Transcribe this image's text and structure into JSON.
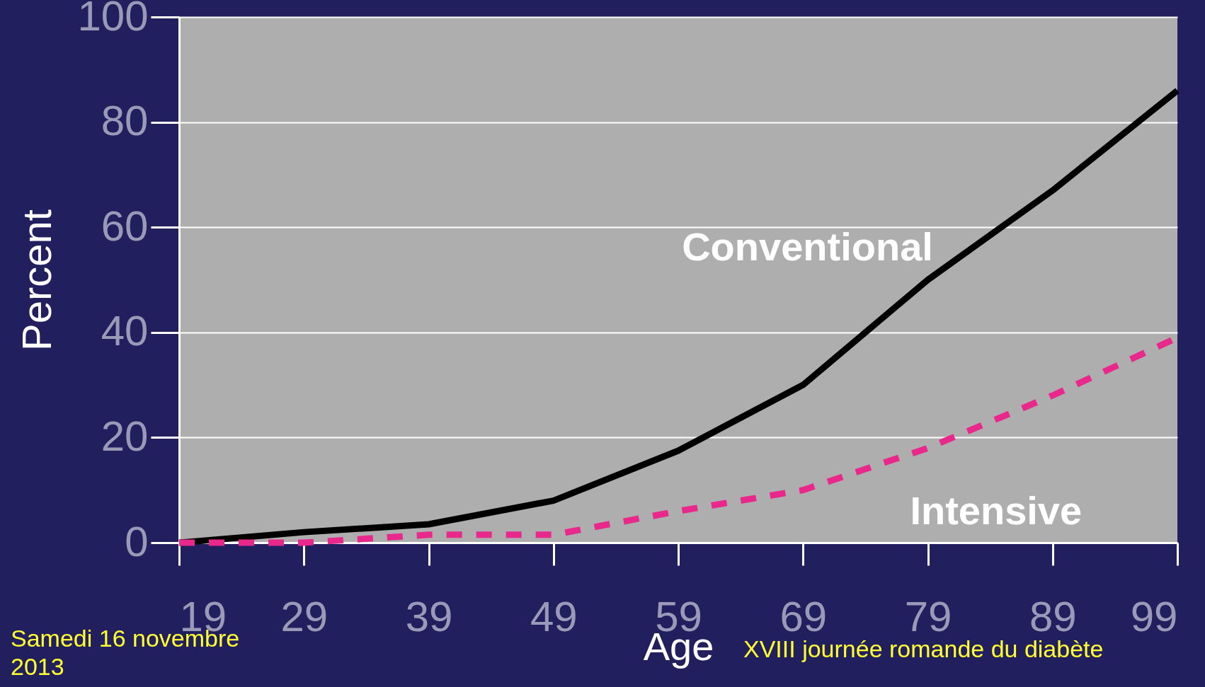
{
  "chart_data": {
    "type": "line",
    "xlabel": "Age",
    "ylabel": "Percent",
    "x": [
      19,
      29,
      39,
      49,
      59,
      69,
      79,
      89,
      99
    ],
    "series": [
      {
        "name": "Conventional",
        "color": "#000000",
        "line_style": "solid",
        "values": [
          0,
          2,
          3.5,
          8,
          17.5,
          30,
          50,
          67,
          86
        ]
      },
      {
        "name": "Intensive",
        "color": "#e8288a",
        "line_style": "dashed",
        "values": [
          0,
          0,
          1.5,
          1.5,
          6,
          10,
          18,
          28,
          39
        ]
      }
    ],
    "xlim": [
      19,
      99
    ],
    "xticks": [
      19,
      29,
      39,
      49,
      59,
      69,
      79,
      89,
      99
    ],
    "ylim": [
      0,
      100
    ],
    "yticks": [
      0,
      20,
      40,
      60,
      80,
      100
    ],
    "grid": "y",
    "marker": "none",
    "annotations": [
      "Samedi 16 novembre 2013",
      "XVIII  journée romande du diabète"
    ]
  }
}
